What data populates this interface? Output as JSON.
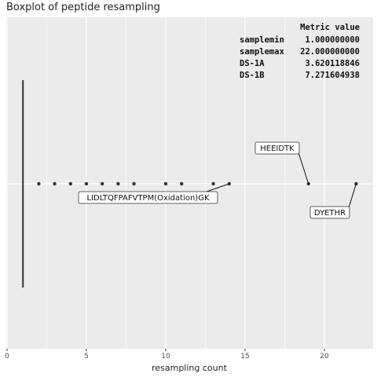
{
  "chart_data": {
    "type": "boxplot",
    "title": "Boxplot of peptide resampling",
    "xlabel": "resampling count",
    "ylabel": "",
    "xlim": [
      0,
      22.8
    ],
    "x_ticks": [
      0,
      5,
      10,
      15,
      20
    ],
    "grid": true,
    "box": {
      "min": 1,
      "q1": 1,
      "median": 1,
      "q3": 1,
      "whisker_low": 1,
      "whisker_high": 1
    },
    "outliers": [
      2,
      3,
      4,
      5,
      6,
      7,
      8,
      10,
      11,
      13,
      14,
      19,
      22
    ],
    "annotations": [
      {
        "label": "LIDLTQFPAFVTPM(Oxidation)GK",
        "x": 14
      },
      {
        "label": "HEEIDTK",
        "x": 19
      },
      {
        "label": "DYETHR",
        "x": 22
      }
    ],
    "stats_table": {
      "header": [
        "Metric",
        "value"
      ],
      "rows": [
        [
          "samplemin",
          "1.000000000"
        ],
        [
          "samplemax",
          "22.000000000"
        ],
        [
          "DS-1A",
          "3.620118846"
        ],
        [
          "DS-1B",
          "7.271604938"
        ]
      ]
    },
    "colors": {
      "panel": "#EBEBEB",
      "grid": "#FFFFFF",
      "points": "#333333",
      "text": "#222222"
    }
  }
}
